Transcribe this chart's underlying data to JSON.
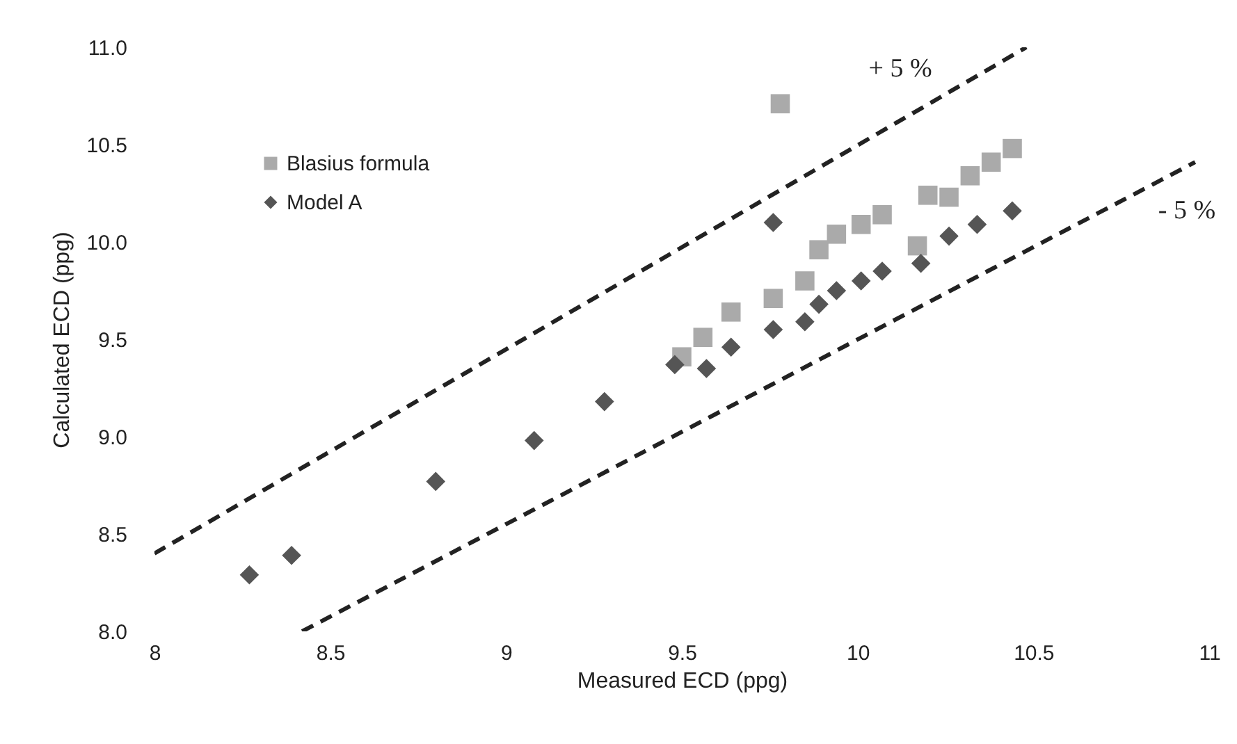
{
  "chart_data": {
    "type": "scatter",
    "xlabel": "Measured  ECD (ppg)",
    "ylabel": "Calculated ECD  (ppg)",
    "xlim": [
      8,
      11
    ],
    "ylim": [
      8,
      11
    ],
    "xticks": [
      8,
      8.5,
      9,
      9.5,
      10,
      10.5,
      11
    ],
    "yticks": [
      {
        "value": 8,
        "label": "8.0"
      },
      8.5,
      {
        "value": 9,
        "label": "9.0"
      },
      9.5,
      {
        "value": 10,
        "label": "10.0"
      },
      10.5,
      {
        "value": 11,
        "label": "11.0"
      }
    ],
    "grid": false,
    "legend": "top left",
    "annotations": [
      "+ 5 %",
      "- 5 %"
    ],
    "series": [
      {
        "name": "Blasius formula",
        "marker": "square",
        "color": "#aaaaaa",
        "x": [
          9.5,
          9.56,
          9.64,
          9.76,
          9.85,
          9.89,
          9.94,
          10.01,
          10.07,
          10.17,
          10.2,
          10.26,
          10.32,
          10.38,
          10.44,
          9.78
        ],
        "values": [
          9.41,
          9.51,
          9.64,
          9.71,
          9.8,
          9.96,
          10.04,
          10.09,
          10.14,
          9.98,
          10.24,
          10.23,
          10.34,
          10.41,
          10.48,
          10.71
        ]
      },
      {
        "name": "Model A",
        "marker": "diamond",
        "color": "#555555",
        "x": [
          8.27,
          8.39,
          8.8,
          9.08,
          9.28,
          9.48,
          9.57,
          9.64,
          9.76,
          9.85,
          9.89,
          9.94,
          10.01,
          10.07,
          10.18,
          10.26,
          10.34,
          10.44,
          9.76
        ],
        "values": [
          8.29,
          8.39,
          8.77,
          8.98,
          9.18,
          9.37,
          9.35,
          9.46,
          9.55,
          9.59,
          9.68,
          9.75,
          9.8,
          9.85,
          9.89,
          10.03,
          10.09,
          10.16,
          10.1
        ]
      },
      {
        "type": "line",
        "color": "#222222",
        "line_style": "dashed",
        "marker": "none",
        "x": [
          8,
          10.48
        ],
        "values": [
          8.4,
          11.0
        ]
      },
      {
        "type": "line",
        "color": "#222222",
        "line_style": "dashed",
        "marker": "none",
        "x": [
          8.42,
          10.96
        ],
        "values": [
          8.0,
          10.41
        ]
      }
    ]
  }
}
